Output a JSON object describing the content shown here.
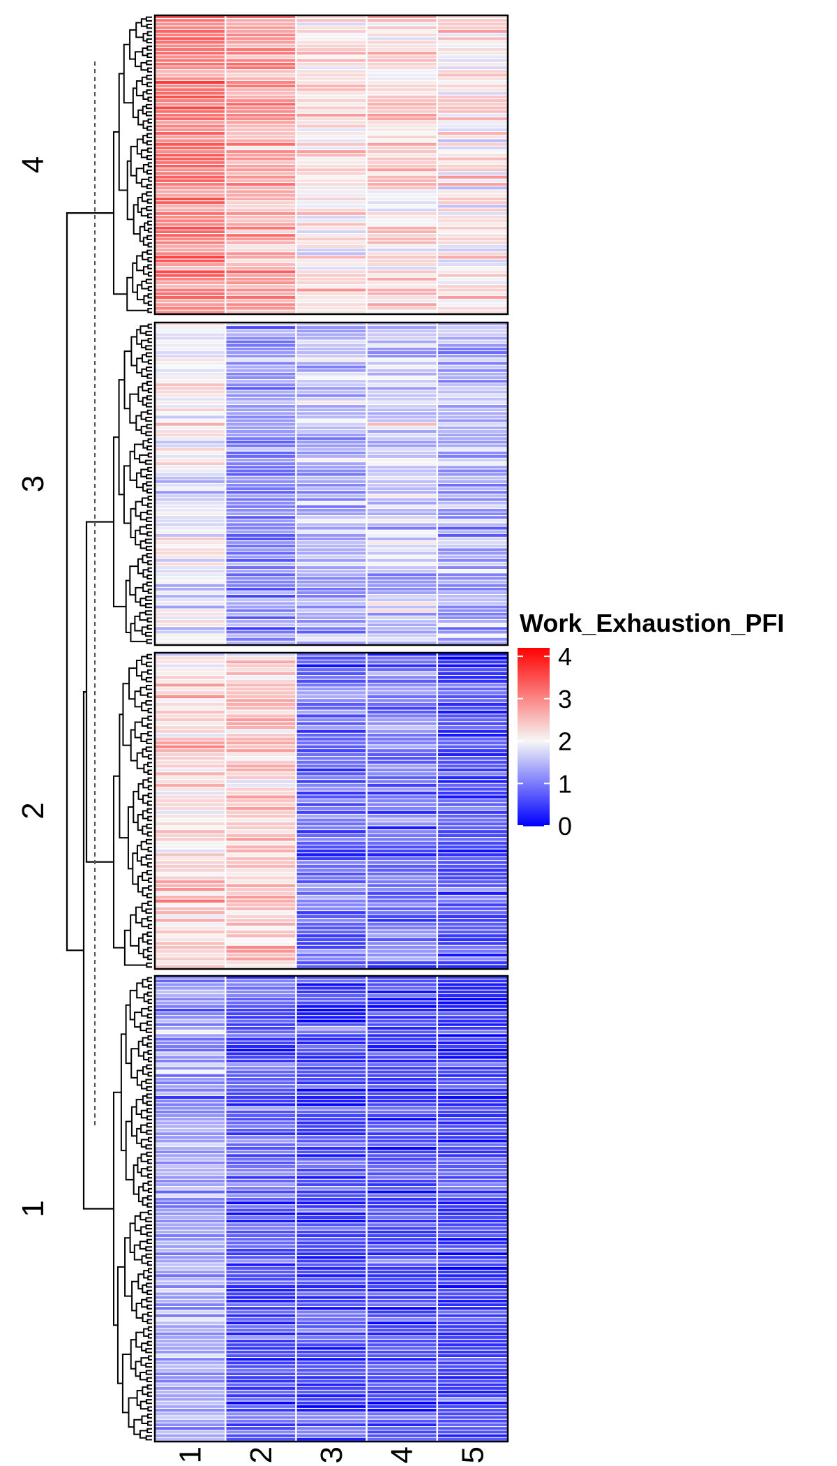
{
  "chart_data": {
    "type": "heatmap",
    "title": "",
    "xlabel": "",
    "ylabel": "",
    "x_tick_labels": [
      "1",
      "2",
      "3",
      "4",
      "5"
    ],
    "legend": {
      "title": "Work_Exhaustion_PFI",
      "ticks": [
        4,
        3,
        2,
        1,
        0
      ],
      "range": [
        0,
        4.2
      ],
      "position": "right",
      "colors": {
        "low": "#0000ff",
        "mid": "#f7f7f7",
        "high": "#ff0000"
      }
    },
    "row_clusters": [
      {
        "label": "4",
        "n_rows": 82,
        "mean_values": [
          3.1,
          2.8,
          2.2,
          2.3,
          2.2
        ]
      },
      {
        "label": "3",
        "n_rows": 90,
        "mean_values": [
          1.9,
          1.1,
          1.4,
          1.6,
          1.4
        ]
      },
      {
        "label": "2",
        "n_rows": 82,
        "mean_values": [
          2.3,
          2.4,
          0.8,
          0.9,
          0.6
        ]
      },
      {
        "label": "1",
        "n_rows": 128,
        "mean_values": [
          1.3,
          0.7,
          0.6,
          0.6,
          0.5
        ]
      }
    ],
    "dendrogram": "left",
    "dendrogram_cut": "dashed"
  }
}
